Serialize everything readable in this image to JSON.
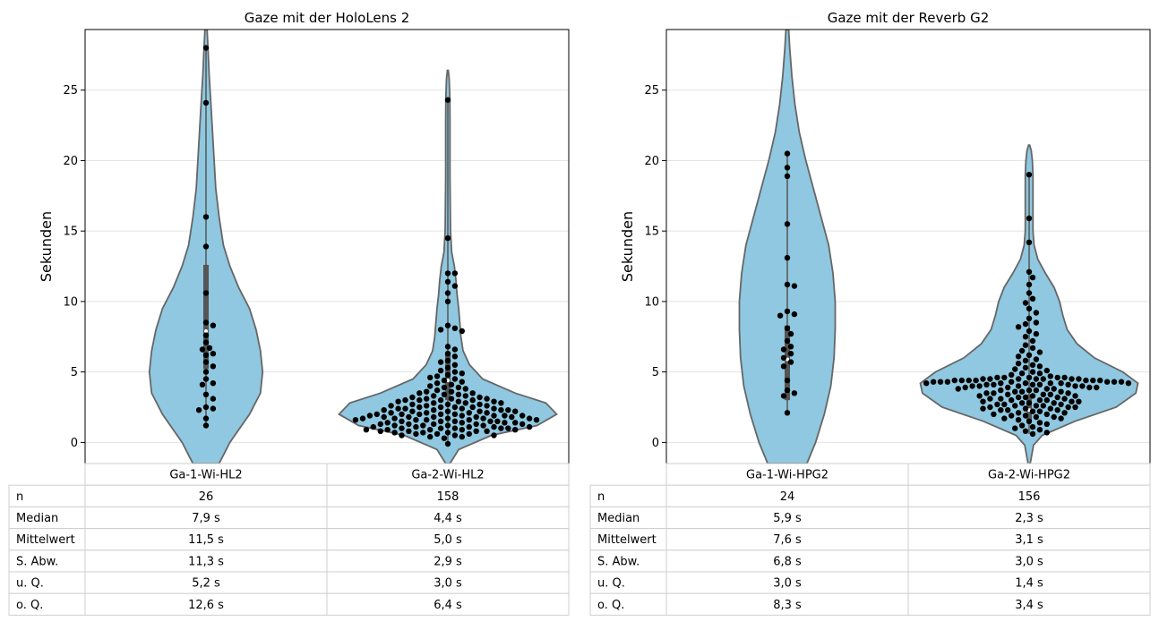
{
  "chart_data": [
    {
      "type": "violin",
      "title": "Gaze mit der HoloLens 2",
      "ylabel": "Sekunden",
      "ylim": [
        -1.5,
        29.3
      ],
      "yticks": [
        0,
        5,
        10,
        15,
        20,
        25
      ],
      "grid": "horizontal",
      "categories": [
        "Ga-1-Wi-HL2",
        "Ga-2-Wi-HL2"
      ],
      "colors": {
        "violin_fill": "#8fc8e0",
        "violin_edge": "#666666",
        "points": "#000000"
      },
      "violins": [
        {
          "category": "Ga-1-Wi-HL2",
          "profile": [
            [
              -1.5,
              0.12
            ],
            [
              0,
              0.22
            ],
            [
              2,
              0.4
            ],
            [
              3.5,
              0.5
            ],
            [
              5,
              0.52
            ],
            [
              6.5,
              0.5
            ],
            [
              8,
              0.46
            ],
            [
              9.5,
              0.4
            ],
            [
              11,
              0.3
            ],
            [
              12.5,
              0.22
            ],
            [
              14,
              0.16
            ],
            [
              16,
              0.12
            ],
            [
              18,
              0.09
            ],
            [
              20,
              0.075
            ],
            [
              22,
              0.06
            ],
            [
              24,
              0.045
            ],
            [
              26,
              0.03
            ],
            [
              28,
              0.018
            ],
            [
              29.3,
              0.01
            ]
          ],
          "points": [
            28.0,
            24.1,
            16.0,
            13.9,
            10.6,
            8.5,
            8.3,
            7.6,
            7.1,
            6.7,
            6.6,
            6.3,
            6.2,
            5.7,
            5.4,
            5.0,
            4.5,
            4.2,
            4.1,
            3.4,
            3.1,
            2.5,
            2.4,
            2.3,
            1.7,
            1.2
          ],
          "quartiles": [
            5.2,
            7.9,
            12.6
          ]
        },
        {
          "category": "Ga-2-Wi-HL2",
          "profile": [
            [
              -1.5,
              0.02
            ],
            [
              -0.5,
              0.1
            ],
            [
              0.5,
              0.4
            ],
            [
              1.2,
              0.82
            ],
            [
              2.0,
              1.0
            ],
            [
              2.8,
              0.9
            ],
            [
              3.5,
              0.62
            ],
            [
              4.5,
              0.32
            ],
            [
              5.5,
              0.2
            ],
            [
              6.5,
              0.14
            ],
            [
              7.5,
              0.12
            ],
            [
              8.5,
              0.11
            ],
            [
              9.5,
              0.1
            ],
            [
              10.5,
              0.085
            ],
            [
              11.5,
              0.075
            ],
            [
              12.5,
              0.06
            ],
            [
              13.5,
              0.035
            ],
            [
              15,
              0.025
            ],
            [
              17,
              0.022
            ],
            [
              19,
              0.02
            ],
            [
              21,
              0.02
            ],
            [
              23,
              0.02
            ],
            [
              24.5,
              0.018
            ],
            [
              25.8,
              0.012
            ],
            [
              26.4,
              0.004
            ]
          ],
          "points": [
            24.3,
            14.5,
            12.0,
            12.0,
            11.4,
            11.1,
            10.6,
            10.0,
            8.3,
            8.1,
            8.0,
            7.9,
            6.8,
            6.6,
            6.3,
            6.1,
            5.8,
            5.7,
            5.5,
            5.3,
            5.0,
            4.8,
            4.7,
            4.6,
            4.5,
            4.4,
            4.3,
            4.2,
            4.1,
            4.0,
            3.9,
            3.8,
            3.7,
            3.6,
            3.6,
            3.5,
            3.5,
            3.4,
            3.4,
            3.3,
            3.3,
            3.2,
            3.2,
            3.1,
            3.1,
            3.1,
            3.0,
            3.0,
            3.0,
            2.9,
            2.9,
            2.9,
            2.8,
            2.8,
            2.8,
            2.7,
            2.7,
            2.7,
            2.6,
            2.6,
            2.6,
            2.5,
            2.5,
            2.5,
            2.4,
            2.4,
            2.4,
            2.4,
            2.3,
            2.3,
            2.3,
            2.3,
            2.2,
            2.2,
            2.2,
            2.2,
            2.1,
            2.1,
            2.1,
            2.1,
            2.0,
            2.0,
            2.0,
            2.0,
            2.0,
            1.9,
            1.9,
            1.9,
            1.9,
            1.9,
            1.8,
            1.8,
            1.8,
            1.8,
            1.8,
            1.7,
            1.7,
            1.7,
            1.7,
            1.7,
            1.6,
            1.6,
            1.6,
            1.6,
            1.5,
            1.5,
            1.5,
            1.5,
            1.5,
            1.4,
            1.4,
            1.4,
            1.4,
            1.3,
            1.3,
            1.3,
            1.3,
            1.3,
            1.2,
            1.2,
            1.2,
            1.2,
            1.1,
            1.1,
            1.1,
            1.1,
            1.1,
            1.0,
            1.0,
            1.0,
            1.0,
            1.0,
            0.9,
            0.9,
            0.9,
            0.9,
            0.9,
            0.8,
            0.8,
            0.8,
            0.8,
            0.7,
            0.7,
            0.7,
            0.6,
            0.6,
            0.6,
            0.5,
            0.5,
            0.5,
            0.4,
            0.4,
            3.9,
            4.9,
            5.1,
            3.0,
            2.5,
            1.6,
            0.3,
            -0.1
          ],
          "quartiles": [
            3.0,
            4.4,
            6.4
          ]
        }
      ],
      "table": {
        "columns": [
          "Ga-1-Wi-HL2",
          "Ga-2-Wi-HL2"
        ],
        "rows": [
          {
            "label": "n",
            "values": [
              "26",
              "158"
            ]
          },
          {
            "label": "Median",
            "values": [
              "7,9 s",
              "4,4 s"
            ]
          },
          {
            "label": "Mittelwert",
            "values": [
              "11,5 s",
              "5,0 s"
            ]
          },
          {
            "label": "S. Abw.",
            "values": [
              "11,3 s",
              "2,9 s"
            ]
          },
          {
            "label": "u. Q.",
            "values": [
              "5,2 s",
              "3,0 s"
            ]
          },
          {
            "label": "o. Q.",
            "values": [
              "12,6 s",
              "6,4 s"
            ]
          }
        ]
      }
    },
    {
      "type": "violin",
      "title": "Gaze mit der Reverb G2",
      "ylabel": "Sekunden",
      "ylim": [
        -1.5,
        29.3
      ],
      "yticks": [
        0,
        5,
        10,
        15,
        20,
        25
      ],
      "grid": "horizontal",
      "categories": [
        "Ga-1-Wi-HPG2",
        "Ga-2-Wi-HPG2"
      ],
      "colors": {
        "violin_fill": "#8fc8e0",
        "violin_edge": "#666666",
        "points": "#000000"
      },
      "violins": [
        {
          "category": "Ga-1-Wi-HPG2",
          "profile": [
            [
              -1.5,
              0.18
            ],
            [
              0,
              0.26
            ],
            [
              2,
              0.34
            ],
            [
              4,
              0.4
            ],
            [
              6,
              0.43
            ],
            [
              8,
              0.44
            ],
            [
              10,
              0.44
            ],
            [
              12,
              0.42
            ],
            [
              14,
              0.38
            ],
            [
              16,
              0.31
            ],
            [
              18,
              0.24
            ],
            [
              20,
              0.17
            ],
            [
              22,
              0.11
            ],
            [
              24,
              0.07
            ],
            [
              26,
              0.042
            ],
            [
              28,
              0.022
            ],
            [
              29.3,
              0.012
            ]
          ],
          "points": [
            20.5,
            19.5,
            18.9,
            15.5,
            13.1,
            11.2,
            11.1,
            9.3,
            9.1,
            9.0,
            8.1,
            7.7,
            7.2,
            6.8,
            6.6,
            6.3,
            6.0,
            5.7,
            5.4,
            4.4,
            3.7,
            3.5,
            3.3,
            2.1
          ],
          "quartiles": [
            3.0,
            5.9,
            8.3
          ]
        },
        {
          "category": "Ga-2-Wi-HPG2",
          "profile": [
            [
              -1.5,
              0.01
            ],
            [
              -0.2,
              0.04
            ],
            [
              0.5,
              0.12
            ],
            [
              1.5,
              0.42
            ],
            [
              2.5,
              0.8
            ],
            [
              3.5,
              0.98
            ],
            [
              4.2,
              1.0
            ],
            [
              5.0,
              0.86
            ],
            [
              6.0,
              0.6
            ],
            [
              7.0,
              0.44
            ],
            [
              8.0,
              0.35
            ],
            [
              9.0,
              0.31
            ],
            [
              10.0,
              0.28
            ],
            [
              11.0,
              0.23
            ],
            [
              12.0,
              0.15
            ],
            [
              13.0,
              0.08
            ],
            [
              14.0,
              0.045
            ],
            [
              15.0,
              0.035
            ],
            [
              16.0,
              0.035
            ],
            [
              17.0,
              0.035
            ],
            [
              18.0,
              0.035
            ],
            [
              19.0,
              0.035
            ],
            [
              20.0,
              0.03
            ],
            [
              20.7,
              0.02
            ],
            [
              21.1,
              0.005
            ]
          ],
          "points": [
            19.0,
            15.9,
            14.2,
            12.1,
            11.7,
            11.2,
            10.6,
            10.2,
            9.9,
            9.5,
            9.2,
            8.8,
            8.5,
            8.4,
            8.2,
            7.9,
            7.7,
            7.5,
            7.2,
            6.9,
            6.7,
            6.5,
            6.4,
            6.2,
            6.1,
            5.9,
            5.8,
            5.6,
            5.5,
            5.4,
            5.3,
            5.2,
            5.1,
            5.0,
            4.9,
            4.9,
            4.8,
            4.7,
            4.6,
            4.6,
            4.5,
            4.5,
            4.4,
            4.4,
            4.3,
            4.3,
            4.2,
            4.2,
            4.2,
            4.1,
            4.1,
            4.1,
            4.0,
            4.0,
            4.0,
            3.9,
            3.9,
            3.9,
            3.8,
            3.8,
            3.8,
            3.7,
            3.7,
            3.7,
            3.6,
            3.6,
            3.6,
            3.5,
            3.5,
            3.5,
            3.4,
            3.4,
            3.4,
            3.3,
            3.3,
            3.3,
            3.2,
            3.2,
            3.2,
            3.1,
            3.1,
            3.1,
            3.0,
            3.0,
            3.0,
            2.9,
            2.9,
            2.9,
            2.8,
            2.8,
            2.8,
            2.7,
            2.7,
            2.7,
            2.6,
            2.6,
            2.6,
            2.5,
            2.5,
            2.5,
            2.4,
            2.4,
            2.4,
            2.3,
            2.3,
            2.3,
            2.2,
            2.2,
            2.1,
            2.1,
            2.0,
            2.0,
            1.9,
            1.9,
            1.8,
            1.8,
            1.7,
            1.7,
            1.6,
            1.5,
            1.4,
            1.3,
            1.2,
            1.1,
            1.0,
            0.9,
            0.8,
            0.7,
            0.6,
            4.4,
            4.5,
            4.6,
            4.3,
            4.2,
            4.5,
            4.6,
            4.4,
            4.3,
            4.5,
            4.4,
            4.6,
            4.5,
            4.3,
            4.4,
            4.5,
            4.2,
            4.1,
            4.3,
            4.4,
            4.2,
            4.3,
            4.1,
            4.0,
            3.9,
            4.0
          ],
          "quartiles": [
            1.4,
            2.3,
            3.4
          ]
        }
      ],
      "table": {
        "columns": [
          "Ga-1-Wi-HPG2",
          "Ga-2-Wi-HPG2"
        ],
        "rows": [
          {
            "label": "n",
            "values": [
              "24",
              "156"
            ]
          },
          {
            "label": "Median",
            "values": [
              "5,9 s",
              "2,3 s"
            ]
          },
          {
            "label": "Mittelwert",
            "values": [
              "7,6 s",
              "3,1 s"
            ]
          },
          {
            "label": "S. Abw.",
            "values": [
              "6,8 s",
              "3,0 s"
            ]
          },
          {
            "label": "u. Q.",
            "values": [
              "3,0 s",
              "1,4 s"
            ]
          },
          {
            "label": "o. Q.",
            "values": [
              "8,3 s",
              "3,4 s"
            ]
          }
        ]
      }
    }
  ]
}
